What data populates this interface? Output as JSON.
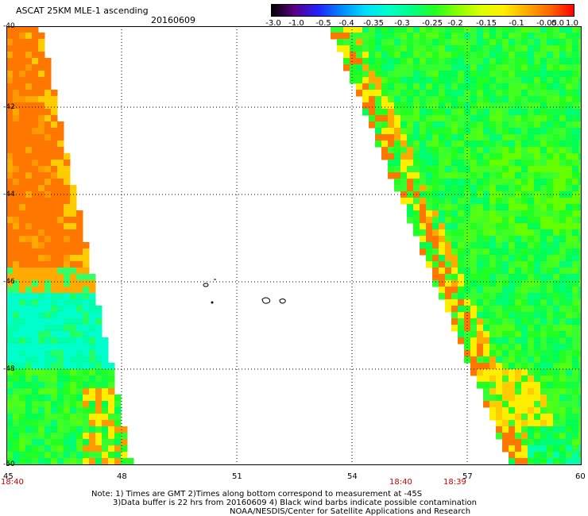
{
  "header": {
    "title": "ASCAT 25KM MLE-1 ascending",
    "date": "20160609"
  },
  "colorbar": {
    "labels": [
      "-3.0",
      "-1.0",
      "-0.5",
      "-0.4",
      "-0.35",
      "-0.3",
      "-0.25",
      "-0.2",
      "-0.15",
      "-0.1",
      "-0.05",
      "0.0",
      "1.0"
    ],
    "colors": [
      "#000000",
      "#5a0088",
      "#2222ff",
      "#0088ff",
      "#00ddff",
      "#00ffcc",
      "#00ff88",
      "#22ff22",
      "#88ff00",
      "#ddff00",
      "#ffee00",
      "#ffaa00",
      "#ff6600",
      "#ff0000"
    ]
  },
  "map": {
    "y_axis": [
      "-40",
      "-42",
      "-44",
      "-46",
      "-48",
      "-50"
    ],
    "x_axis": [
      "45",
      "48",
      "51",
      "54",
      "57",
      "60"
    ],
    "times": [
      "18:40",
      "18:40",
      "18:39"
    ],
    "notes": [
      "Note: 1) Times are GMT 2)Times along bottom correspond to measurement at -45S",
      "3)Data buffer is 22 hrs from 20160609 4) Black wind barbs indicate possible contamination",
      "NOAA/NESDIS/Center for Satellite Applications and Research"
    ]
  }
}
